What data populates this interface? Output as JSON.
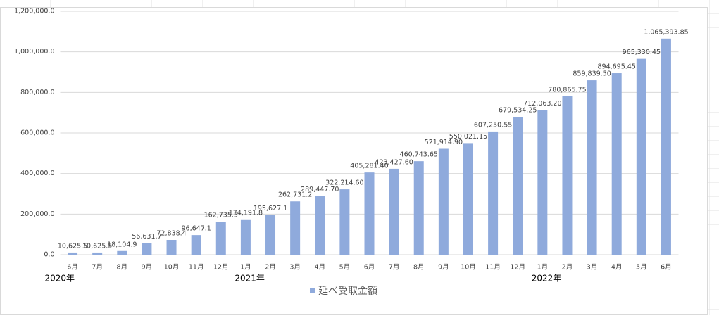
{
  "chart_data": {
    "type": "bar",
    "categories": [
      "6月",
      "7月",
      "8月",
      "9月",
      "10月",
      "11月",
      "12月",
      "1月",
      "2月",
      "3月",
      "4月",
      "5月",
      "6月",
      "7月",
      "8月",
      "9月",
      "10月",
      "11月",
      "12月",
      "1月",
      "2月",
      "3月",
      "4月",
      "5月",
      "6月"
    ],
    "year_groups": [
      {
        "label": "2020年",
        "count": 7
      },
      {
        "label": "2021年",
        "count": 12
      },
      {
        "label": "2022年",
        "count": 6
      }
    ],
    "series": [
      {
        "name": "延べ受取金額",
        "color": "#8faadc",
        "values": [
          10625.5,
          10625.5,
          18104.9,
          56631.7,
          72838.4,
          96647.1,
          162735.5,
          174191.8,
          195627.1,
          262731.2,
          289447.7,
          322214.6,
          405281.4,
          423427.6,
          460743.65,
          521914.9,
          550021.15,
          607250.55,
          679534.25,
          712063.2,
          780865.75,
          859839.5,
          894695.45,
          965330.45,
          1065393.85
        ],
        "value_labels": [
          "10,625.5",
          "10,625.5",
          "18,104.9",
          "56,631.7",
          "72,838.4",
          "96,647.1",
          "162,735.5",
          "174,191.8",
          "195,627.1",
          "262,731.2",
          "289,447.70",
          "322,214.60",
          "405,281.40",
          "423,427.60",
          "460,743.65",
          "521,914.90",
          "550,021.15",
          "607,250.55",
          "679,534.25",
          "712,063.20",
          "780,865.75",
          "859,839.50",
          "894,695.45",
          "965,330.45",
          "1,065,393.85"
        ]
      }
    ],
    "ylim": [
      0,
      1200000
    ],
    "yticks": [
      {
        "value": 0,
        "label": "0.0"
      },
      {
        "value": 200000,
        "label": "200,000.0"
      },
      {
        "value": 400000,
        "label": "400,000.0"
      },
      {
        "value": 600000,
        "label": "600,000.0"
      },
      {
        "value": 800000,
        "label": "800,000.0"
      },
      {
        "value": 1000000,
        "label": "1,000,000.0"
      },
      {
        "value": 1200000,
        "label": "1,200,000.0"
      }
    ],
    "grid": true,
    "legend": "bottom"
  }
}
